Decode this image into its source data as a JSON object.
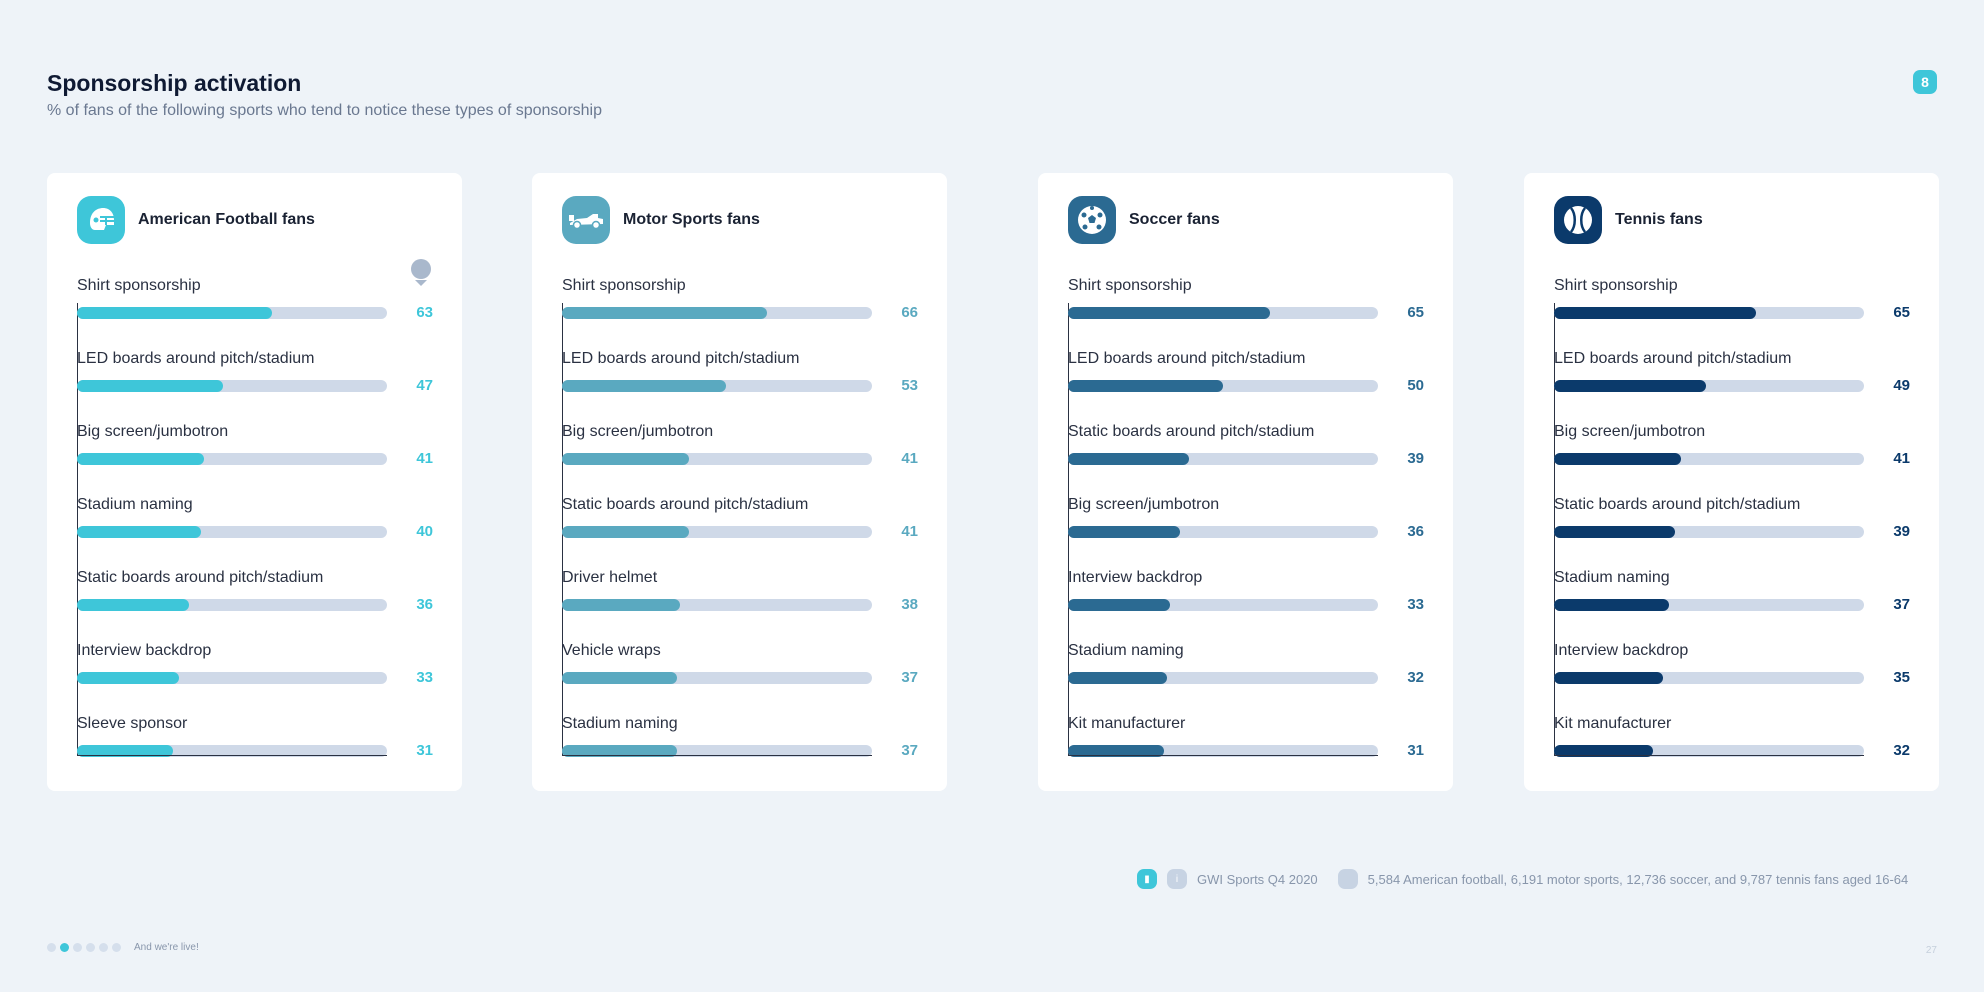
{
  "header": {
    "title": "Sponsorship activation",
    "subtitle": "% of fans of the following sports who tend to notice these types of sponsorship",
    "badge": "8"
  },
  "chart_data": [
    {
      "type": "bar",
      "title": "American Football fans",
      "icon": "football-helmet-icon",
      "color": "#3ec6d9",
      "categories": [
        "Shirt sponsorship",
        "LED boards around pitch/stadium",
        "Big screen/jumbotron",
        "Stadium naming",
        "Static boards around pitch/stadium",
        "Interview backdrop",
        "Sleeve sponsor"
      ],
      "values": [
        63,
        47,
        41,
        40,
        36,
        33,
        31
      ],
      "xlim": [
        0,
        100
      ]
    },
    {
      "type": "bar",
      "title": "Motor Sports fans",
      "icon": "race-car-icon",
      "color": "#5aa9c0",
      "categories": [
        "Shirt sponsorship",
        "LED boards around pitch/stadium",
        "Big screen/jumbotron",
        "Static boards around pitch/stadium",
        "Driver helmet",
        "Vehicle wraps",
        "Stadium naming"
      ],
      "values": [
        66,
        53,
        41,
        41,
        38,
        37,
        37
      ],
      "xlim": [
        0,
        100
      ]
    },
    {
      "type": "bar",
      "title": "Soccer fans",
      "icon": "soccer-ball-icon",
      "color": "#2b6a92",
      "categories": [
        "Shirt sponsorship",
        "LED boards around pitch/stadium",
        "Static boards around pitch/stadium",
        "Big screen/jumbotron",
        "Interview backdrop",
        "Stadium naming",
        "Kit manufacturer"
      ],
      "values": [
        65,
        50,
        39,
        36,
        33,
        32,
        31
      ],
      "xlim": [
        0,
        100
      ]
    },
    {
      "type": "bar",
      "title": "Tennis fans",
      "icon": "tennis-ball-icon",
      "color": "#0b3a6b",
      "categories": [
        "Shirt sponsorship",
        "LED boards around pitch/stadium",
        "Big screen/jumbotron",
        "Static boards around pitch/stadium",
        "Stadium naming",
        "Interview backdrop",
        "Kit manufacturer"
      ],
      "values": [
        65,
        49,
        41,
        39,
        37,
        35,
        32
      ],
      "xlim": [
        0,
        100
      ]
    }
  ],
  "footer": {
    "source_label": "GWI Sports Q4 2020",
    "base_label": "5,584 American football, 6,191 motor sports, 12,736 soccer, and 9,787 tennis fans aged 16-64",
    "tagline": "And we're live!",
    "page_number": "27",
    "dots_total": 6,
    "dots_active": 1
  },
  "colors": {
    "background": "#eef3f8",
    "track": "#cfd9e8",
    "accent": "#3ec6d9"
  }
}
